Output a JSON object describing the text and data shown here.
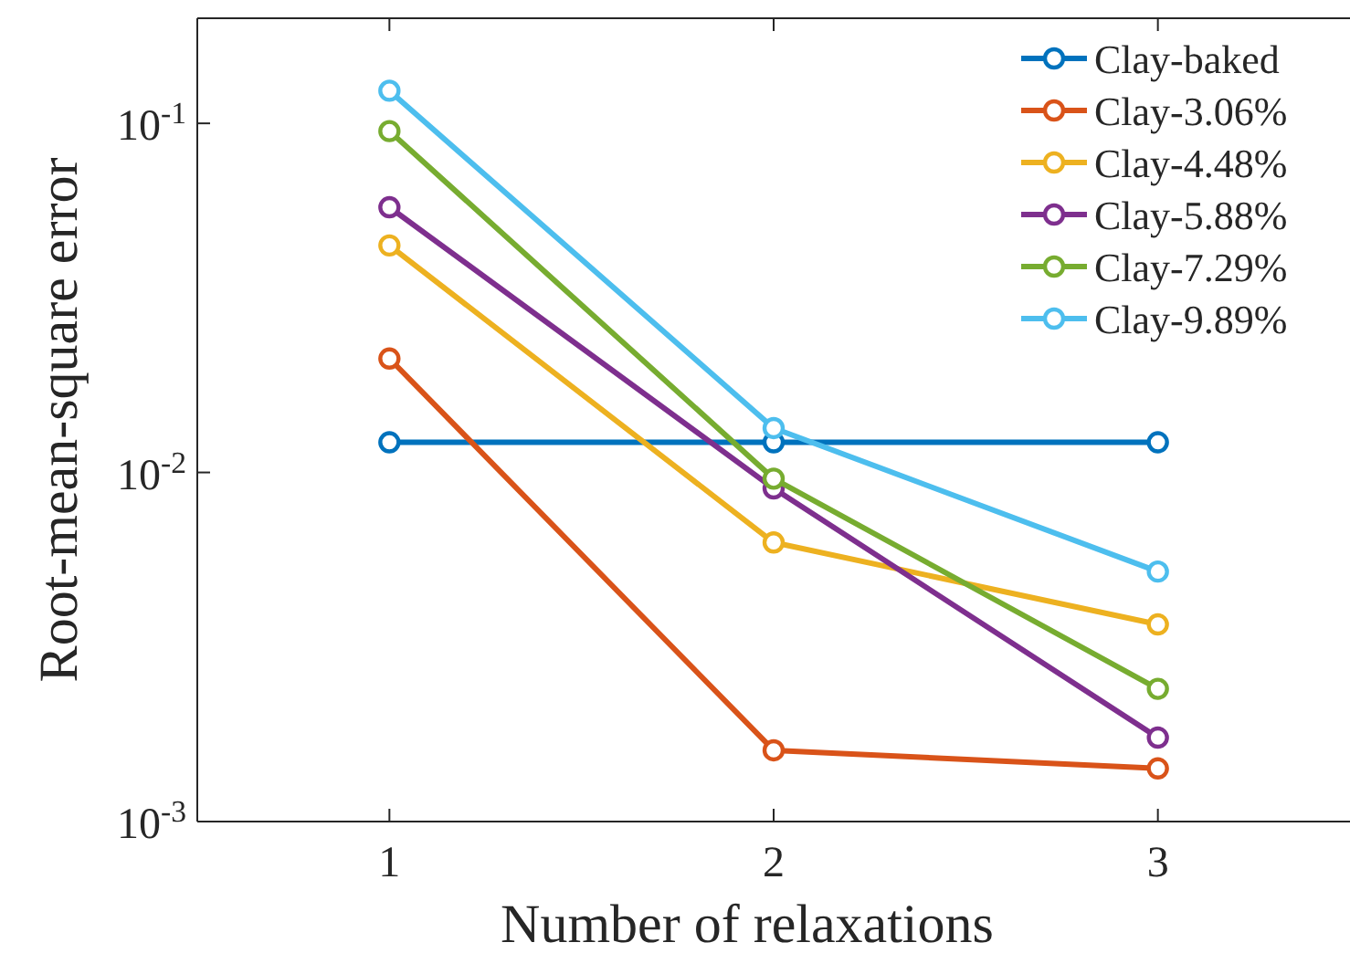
{
  "chart_data": {
    "type": "line",
    "xlabel": "Number of relaxations",
    "ylabel": "Root-mean-square error",
    "x": [
      1,
      2,
      3
    ],
    "log": "y",
    "xlim": [
      0.5,
      3.5
    ],
    "xticks": [
      1,
      2,
      3
    ],
    "ylim": [
      0.001,
      0.2
    ],
    "yticks": [
      {
        "value": 0.001,
        "label": "10$^{-3}$"
      },
      {
        "value": 0.01,
        "label": "10$^{-2}$"
      },
      {
        "value": 0.1,
        "label": "10$^{-1}$"
      }
    ],
    "grid": false,
    "legend": "top right",
    "marker": "circle",
    "line_style": "solid",
    "series": [
      {
        "name": "Clay-baked",
        "color": "#0072bd",
        "values": [
          0.0122,
          0.0122,
          0.0122
        ]
      },
      {
        "name": "Clay-3.06%",
        "color": "#d95319",
        "values": [
          0.0212,
          0.0016,
          0.00142
        ]
      },
      {
        "name": "Clay-4.48%",
        "color": "#edb120",
        "values": [
          0.0447,
          0.0063,
          0.00367
        ]
      },
      {
        "name": "Clay-5.88%",
        "color": "#7e2f8e",
        "values": [
          0.0575,
          0.009,
          0.00174
        ]
      },
      {
        "name": "Clay-7.29%",
        "color": "#77ac30",
        "values": [
          0.095,
          0.0096,
          0.0024
        ]
      },
      {
        "name": "Clay-9.89%",
        "color": "#4dbeee",
        "values": [
          0.124,
          0.0134,
          0.0052
        ]
      }
    ]
  }
}
